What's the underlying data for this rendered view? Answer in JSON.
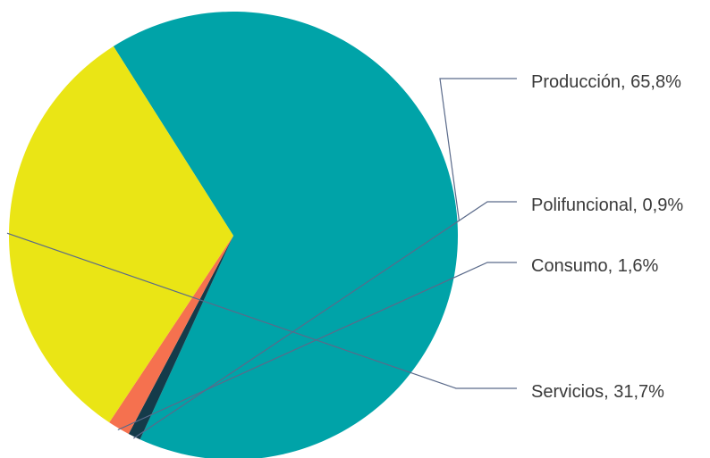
{
  "chart_data": {
    "type": "pie",
    "title": "",
    "slices": [
      {
        "label": "Producción, 65,8%",
        "name": "Producción",
        "value": 65.8,
        "color": "#00A3A8"
      },
      {
        "label": "Polifuncional, 0,9%",
        "name": "Polifuncional",
        "value": 0.9,
        "color": "#143B4A"
      },
      {
        "label": "Consumo, 1,6%",
        "name": "Consumo",
        "value": 1.6,
        "color": "#F5714F"
      },
      {
        "label": "Servicios, 31,7%",
        "name": "Servicios",
        "value": 31.7,
        "color": "#EAE515"
      }
    ],
    "leader_line_color": "#5a6a8a",
    "legend": "none"
  }
}
